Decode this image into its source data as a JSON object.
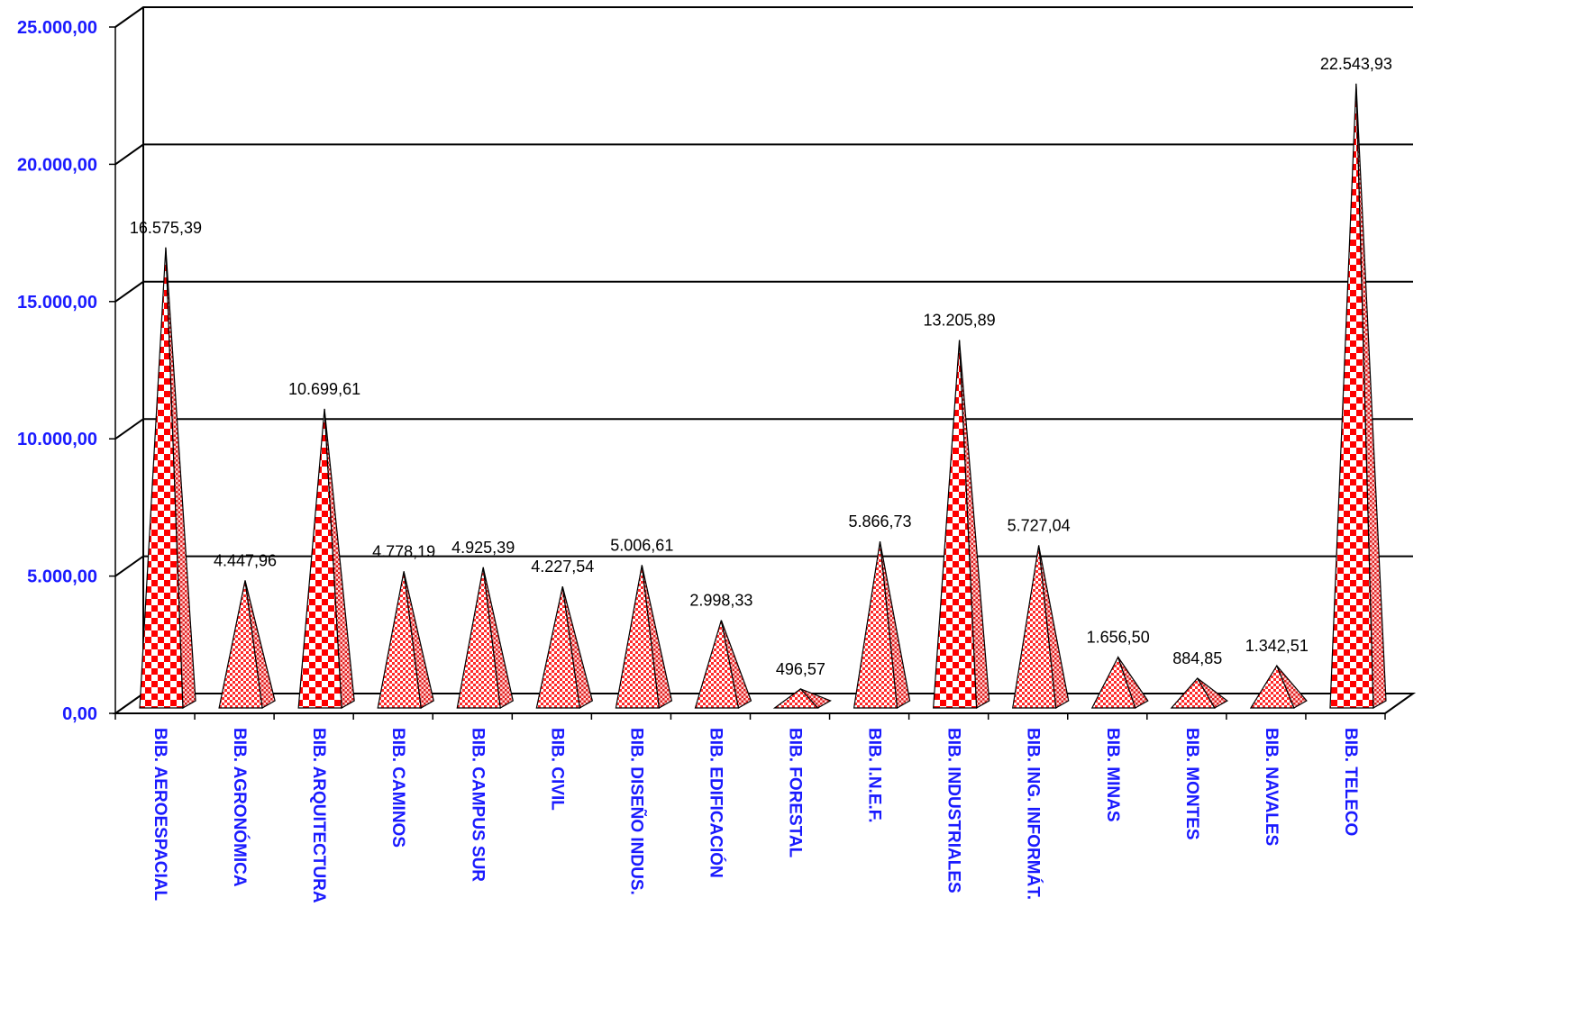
{
  "chart_data": {
    "type": "bar",
    "shape": "pyramid-3d",
    "categories": [
      "BIB. AEROESPACIAL",
      "BIB. AGRONÓMICA",
      "BIB. ARQUITECTURA",
      "BIB. CAMINOS",
      "BIB. CAMPUS SUR",
      "BIB. CIVIL",
      "BIB. DISEÑO INDUS.",
      "BIB. EDIFICACIÓN",
      "BIB. FORESTAL",
      "BIB. I.N.E.F.",
      "BIB. INDUSTRIALES",
      "BIB. ING. INFORMÁT.",
      "BIB. MINAS",
      "BIB. MONTES",
      "BIB. NAVALES",
      "BIB. TELECO"
    ],
    "values": [
      16575.39,
      4447.96,
      10699.61,
      4778.19,
      4925.39,
      4227.54,
      5006.61,
      2998.33,
      496.57,
      5866.73,
      13205.89,
      5727.04,
      1656.5,
      884.85,
      1342.51,
      22543.93
    ],
    "data_labels": [
      "16.575,39",
      "4.447,96",
      "10.699,61",
      "4.778,19",
      "4.925,39",
      "4.227,54",
      "5.006,61",
      "2.998,33",
      "496,57",
      "5.866,73",
      "13.205,89",
      "5.727,04",
      "1.656,50",
      "884,85",
      "1.342,51",
      "22.543,93"
    ],
    "yticks": [
      0,
      5000,
      10000,
      15000,
      20000,
      25000
    ],
    "ytick_labels": [
      "0,00",
      "5.000,00",
      "10.000,00",
      "15.000,00",
      "20.000,00",
      "25.000,00"
    ],
    "ylim": [
      0,
      25000
    ],
    "title": "",
    "xlabel": "",
    "ylabel": "",
    "grid": true,
    "legend": "none",
    "colors": {
      "axis_text": "#1a1aff",
      "pyramid_fill": "#ff0000",
      "pyramid_alt": "#ffffff",
      "outline": "#000000"
    }
  }
}
